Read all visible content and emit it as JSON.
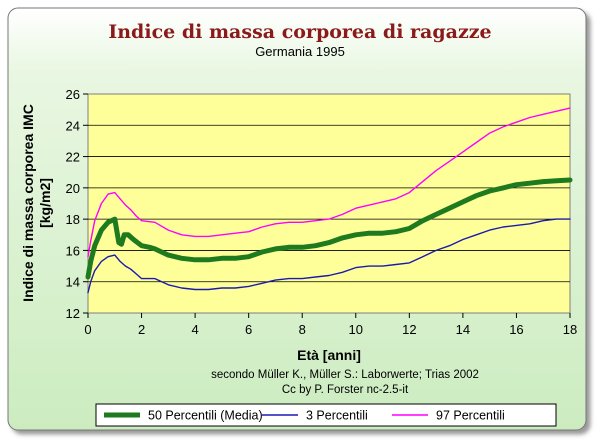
{
  "chart_data": {
    "type": "line",
    "title": "Indice di massa corporea di ragazze",
    "subtitle": "Germania 1995",
    "xlabel": "Età [anni]",
    "ylabel": "Indice di massa corporea IMC",
    "ylabel_unit": "[kg/m2]",
    "xlim": [
      0,
      18
    ],
    "ylim": [
      12,
      26
    ],
    "xticks": [
      0,
      2,
      4,
      6,
      8,
      10,
      12,
      14,
      16,
      18
    ],
    "yticks": [
      12,
      14,
      16,
      18,
      20,
      22,
      24,
      26
    ],
    "grid": "horizontal",
    "credits": [
      "secondo Müller K., Müller S.: Laborwerte; Trias 2002",
      "Cc by P. Forster nc-2.5-it"
    ],
    "legend_position": "bottom",
    "series": [
      {
        "name": "50 Percentili (Media)",
        "color": "#1e7a1e",
        "x": [
          0,
          0.1,
          0.25,
          0.5,
          0.75,
          1.0,
          1.15,
          1.25,
          1.35,
          1.5,
          1.7,
          2.0,
          2.3,
          2.5,
          3.0,
          3.5,
          4.0,
          4.5,
          5.0,
          5.5,
          6.0,
          6.5,
          7.0,
          7.5,
          8.0,
          8.5,
          9.0,
          9.5,
          10.0,
          10.5,
          11.0,
          11.5,
          12.0,
          12.5,
          13.0,
          13.5,
          14.0,
          14.5,
          15.0,
          15.5,
          16.0,
          16.5,
          17.0,
          17.5,
          18.0
        ],
        "y": [
          14.3,
          15.3,
          16.3,
          17.3,
          17.8,
          18.0,
          16.5,
          16.4,
          17.0,
          17.0,
          16.7,
          16.3,
          16.2,
          16.1,
          15.7,
          15.5,
          15.4,
          15.4,
          15.5,
          15.5,
          15.6,
          15.9,
          16.1,
          16.2,
          16.2,
          16.3,
          16.5,
          16.8,
          17.0,
          17.1,
          17.1,
          17.2,
          17.4,
          17.9,
          18.3,
          18.7,
          19.1,
          19.5,
          19.8,
          20.0,
          20.2,
          20.3,
          20.4,
          20.45,
          20.5
        ]
      },
      {
        "name": "3 Percentili",
        "color": "#1a1ab0",
        "x": [
          0,
          0.1,
          0.25,
          0.5,
          0.75,
          1.0,
          1.2,
          1.4,
          1.6,
          1.8,
          2.0,
          2.5,
          3.0,
          3.5,
          4.0,
          4.5,
          5.0,
          5.5,
          6.0,
          6.5,
          7.0,
          7.5,
          8.0,
          8.5,
          9.0,
          9.5,
          10.0,
          10.5,
          11.0,
          11.5,
          12.0,
          12.5,
          13.0,
          13.5,
          14.0,
          14.5,
          15.0,
          15.5,
          16.0,
          16.5,
          17.0,
          17.5,
          18.0
        ],
        "y": [
          13.3,
          14.0,
          14.7,
          15.3,
          15.6,
          15.7,
          15.3,
          15.0,
          14.8,
          14.5,
          14.2,
          14.2,
          13.8,
          13.6,
          13.5,
          13.5,
          13.6,
          13.6,
          13.7,
          13.9,
          14.1,
          14.2,
          14.2,
          14.3,
          14.4,
          14.6,
          14.9,
          15.0,
          15.0,
          15.1,
          15.2,
          15.6,
          16.0,
          16.3,
          16.7,
          17.0,
          17.3,
          17.5,
          17.6,
          17.7,
          17.9,
          18.0,
          18.0
        ]
      },
      {
        "name": "97 Percentili",
        "color": "#ff00ff",
        "x": [
          0,
          0.1,
          0.25,
          0.5,
          0.75,
          1.0,
          1.2,
          1.4,
          1.6,
          1.8,
          2.0,
          2.5,
          3.0,
          3.5,
          4.0,
          4.5,
          5.0,
          5.5,
          6.0,
          6.5,
          7.0,
          7.5,
          8.0,
          8.5,
          9.0,
          9.5,
          10.0,
          10.5,
          11.0,
          11.5,
          12.0,
          12.5,
          13.0,
          13.5,
          14.0,
          14.5,
          15.0,
          15.5,
          16.0,
          16.5,
          17.0,
          17.5,
          18.0
        ],
        "y": [
          15.6,
          16.6,
          17.9,
          19.0,
          19.6,
          19.7,
          19.3,
          18.9,
          18.6,
          18.2,
          17.9,
          17.8,
          17.3,
          17.0,
          16.9,
          16.9,
          17.0,
          17.1,
          17.2,
          17.5,
          17.7,
          17.8,
          17.8,
          17.9,
          18.0,
          18.3,
          18.7,
          18.9,
          19.1,
          19.3,
          19.7,
          20.4,
          21.1,
          21.7,
          22.3,
          22.9,
          23.5,
          23.9,
          24.2,
          24.5,
          24.7,
          24.9,
          25.1
        ]
      }
    ]
  }
}
